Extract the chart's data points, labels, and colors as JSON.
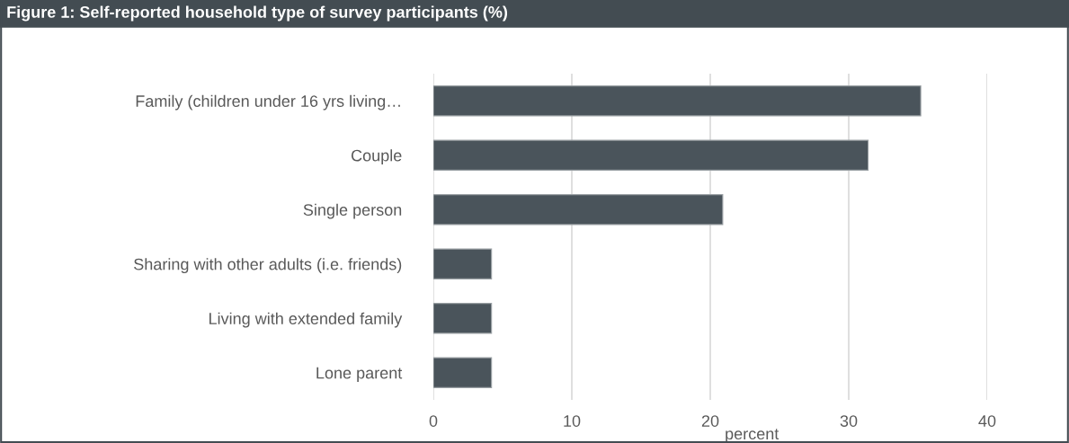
{
  "chart_data": {
    "type": "bar",
    "orientation": "horizontal",
    "title": "Figure 1: Self-reported household type of survey participants (%)",
    "categories": [
      "Family (children under 16 yrs living…",
      "Couple",
      "Single person",
      "Sharing with other adults (i.e. friends)",
      "Living with extended family",
      "Lone parent"
    ],
    "values": [
      35.2,
      31.4,
      20.9,
      4.2,
      4.2,
      4.2
    ],
    "color": "#4a545b",
    "xlabel": "percent",
    "xlim": [
      0,
      40
    ],
    "xticks": [
      0,
      10,
      20,
      30,
      40
    ],
    "grid": "x"
  }
}
